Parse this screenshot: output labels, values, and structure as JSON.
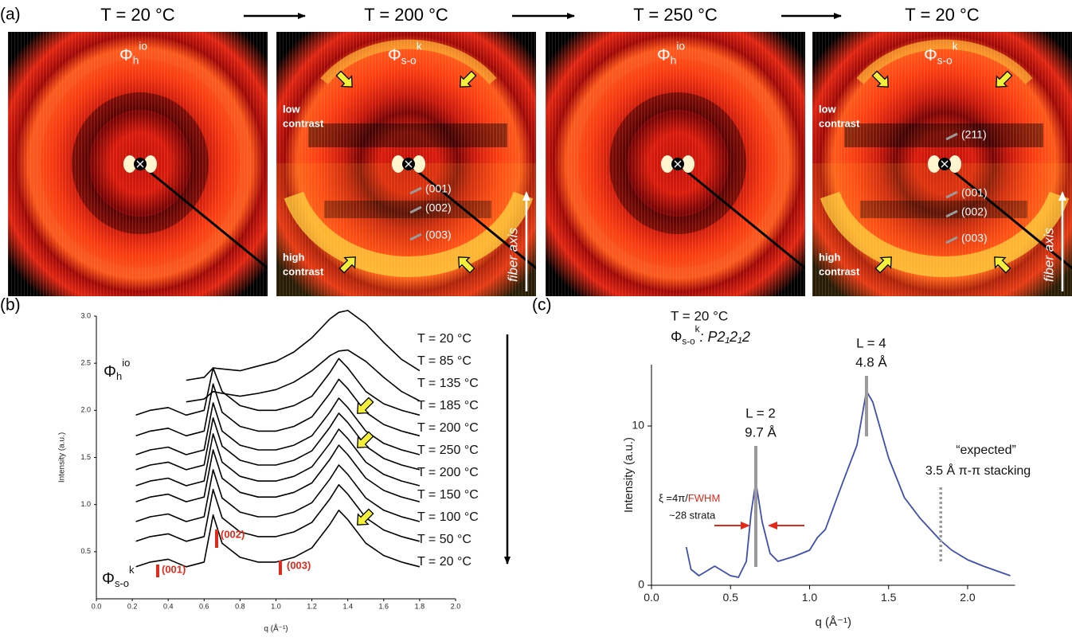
{
  "panel_a": {
    "label": "(a)",
    "frames": [
      {
        "temperature": "T = 20 °C",
        "phase": {
          "symbol": "Φ",
          "sub": "h",
          "sup": "io"
        }
      },
      {
        "temperature": "T = 200 °C",
        "phase": {
          "symbol": "Φ",
          "sub": "s-o",
          "sup": "k"
        },
        "low_contrast": [
          "low",
          "contrast"
        ],
        "high_contrast": [
          "high",
          "contrast"
        ],
        "reflections": [
          "(001)",
          "(002)",
          "(003)"
        ],
        "fiber_axis": "fiber axis"
      },
      {
        "temperature": "T = 250 °C",
        "phase": {
          "symbol": "Φ",
          "sub": "h",
          "sup": "io"
        }
      },
      {
        "temperature": "T = 20 °C",
        "phase": {
          "symbol": "Φ",
          "sub": "s-o",
          "sup": "k"
        },
        "low_contrast": [
          "low",
          "contrast"
        ],
        "high_contrast": [
          "high",
          "contrast"
        ],
        "reflections": [
          "(211)",
          "(001)",
          "(002)",
          "(003)"
        ],
        "fiber_axis": "fiber axis"
      }
    ]
  },
  "chart_data": [
    {
      "type": "line",
      "label": "(b)",
      "x_label": "q (Å⁻¹)",
      "y_label": "Intensity (a.u.)",
      "x": [
        0.22,
        0.3,
        0.4,
        0.5,
        0.6,
        0.65,
        0.7,
        0.8,
        0.9,
        1.0,
        1.1,
        1.2,
        1.3,
        1.35,
        1.4,
        1.5,
        1.6,
        1.7,
        1.8
      ],
      "series": [
        {
          "name": "T = 20 °C",
          "color": "#000000",
          "values": [
            null,
            null,
            null,
            2.32,
            2.35,
            2.45,
            2.44,
            2.42,
            2.47,
            2.52,
            2.62,
            2.77,
            2.97,
            3.04,
            3.06,
            2.92,
            2.72,
            2.54,
            2.42
          ]
        },
        {
          "name": "T = 85 °C",
          "color": "#000000",
          "values": [
            null,
            null,
            null,
            2.09,
            2.12,
            2.2,
            2.18,
            2.15,
            2.18,
            2.22,
            2.3,
            2.42,
            2.58,
            2.63,
            2.64,
            2.52,
            2.35,
            2.2,
            2.1
          ]
        },
        {
          "name": "T = 135 °C",
          "color": "#000000",
          "values": [
            1.95,
            2.0,
            2.03,
            1.95,
            2.0,
            2.45,
            2.2,
            2.05,
            2.0,
            2.0,
            2.05,
            2.15,
            2.4,
            2.55,
            2.45,
            2.2,
            2.07,
            2.0,
            1.95
          ]
        },
        {
          "name": "T = 185 °C",
          "color": "#000000",
          "values": [
            1.73,
            1.78,
            1.81,
            1.73,
            1.78,
            2.28,
            1.98,
            1.83,
            1.78,
            1.78,
            1.83,
            1.93,
            2.18,
            2.33,
            2.23,
            1.98,
            1.85,
            1.78,
            1.73
          ]
        },
        {
          "name": "T = 200 °C",
          "color": "#000000",
          "values": [
            1.53,
            1.58,
            1.61,
            1.53,
            1.58,
            2.08,
            1.78,
            1.63,
            1.58,
            1.58,
            1.63,
            1.73,
            1.98,
            2.13,
            2.03,
            1.78,
            1.65,
            1.58,
            1.53
          ]
        },
        {
          "name": "T = 250 °C",
          "color": "#000000",
          "values": [
            1.37,
            1.42,
            1.45,
            1.37,
            1.42,
            1.92,
            1.62,
            1.47,
            1.42,
            1.42,
            1.47,
            1.57,
            1.82,
            1.97,
            1.87,
            1.62,
            1.49,
            1.42,
            1.37
          ]
        },
        {
          "name": "T = 200 °C",
          "color": "#000000",
          "values": [
            1.2,
            1.25,
            1.28,
            1.2,
            1.25,
            1.75,
            1.45,
            1.3,
            1.25,
            1.25,
            1.3,
            1.4,
            1.65,
            1.8,
            1.7,
            1.45,
            1.32,
            1.25,
            1.2
          ]
        },
        {
          "name": "T = 150 °C",
          "color": "#000000",
          "values": [
            1.03,
            1.08,
            1.11,
            1.03,
            1.08,
            1.58,
            1.28,
            1.13,
            1.08,
            1.08,
            1.13,
            1.23,
            1.48,
            1.63,
            1.53,
            1.28,
            1.15,
            1.08,
            1.03
          ]
        },
        {
          "name": "T = 100 °C",
          "color": "#000000",
          "values": [
            0.82,
            0.87,
            0.9,
            0.82,
            0.87,
            1.37,
            1.07,
            0.92,
            0.87,
            0.87,
            0.92,
            1.02,
            1.27,
            1.42,
            1.32,
            1.07,
            0.94,
            0.87,
            0.82
          ]
        },
        {
          "name": "T = 50 °C",
          "color": "#000000",
          "values": [
            0.61,
            0.66,
            0.69,
            0.61,
            0.66,
            1.16,
            0.86,
            0.71,
            0.66,
            0.66,
            0.71,
            0.81,
            1.06,
            1.21,
            1.11,
            0.86,
            0.73,
            0.66,
            0.61
          ]
        },
        {
          "name": "T = 20 °C",
          "color": "#000000",
          "values": [
            0.34,
            0.39,
            0.42,
            0.34,
            0.39,
            0.89,
            0.59,
            0.44,
            0.39,
            0.39,
            0.44,
            0.54,
            0.79,
            0.94,
            0.84,
            0.59,
            0.46,
            0.39,
            0.34
          ]
        }
      ],
      "xlim": [
        0,
        2
      ],
      "ylim": [
        0,
        3
      ],
      "xticks": [
        {
          "value": 0,
          "label": "0.0"
        },
        0.2,
        0.4,
        0.6,
        0.8,
        {
          "value": 1,
          "label": "1.0"
        },
        1.2,
        1.4,
        1.6,
        1.8,
        {
          "value": 2,
          "label": "2.0"
        }
      ],
      "yticks": [
        0.5,
        {
          "value": 1,
          "label": "1.0"
        },
        1.5,
        {
          "value": 2,
          "label": "2.0"
        },
        2.5,
        {
          "value": 3,
          "label": "3.0"
        }
      ],
      "phase_top": {
        "symbol": "Φ",
        "sub": "h",
        "sup": "io"
      },
      "phase_bottom": {
        "symbol": "Φ",
        "sub": "s-o",
        "sup": "k"
      },
      "annotations": [
        "(001)",
        "(002)",
        "(003)"
      ]
    },
    {
      "type": "line",
      "label": "(c)",
      "title": "T = 20 °C",
      "subtitle": {
        "symbol": "Φ",
        "sub": "s-o",
        "sup": "k",
        "text": ": P2₁2₁2"
      },
      "x_label": "q (Å⁻¹)",
      "y_label": "Intensity (a.u.)",
      "x": [
        0.22,
        0.25,
        0.3,
        0.35,
        0.4,
        0.45,
        0.5,
        0.55,
        0.6,
        0.63,
        0.66,
        0.7,
        0.75,
        0.8,
        0.9,
        1.0,
        1.05,
        1.1,
        1.2,
        1.3,
        1.36,
        1.4,
        1.5,
        1.6,
        1.7,
        1.83,
        1.9,
        2.0,
        2.1,
        2.27
      ],
      "series": [
        {
          "color": "#3f4fae",
          "values": [
            2.4,
            1.0,
            0.6,
            0.9,
            1.2,
            0.9,
            0.6,
            0.5,
            1.5,
            4.5,
            6.5,
            4.0,
            2.0,
            1.5,
            1.8,
            2.2,
            3.0,
            3.5,
            6.2,
            8.8,
            12.2,
            11.5,
            8.0,
            5.5,
            4.2,
            2.8,
            2.2,
            1.6,
            1.2,
            0.6
          ]
        }
      ],
      "xlim": [
        0,
        2.3
      ],
      "ylim": [
        0,
        13.85
      ],
      "xticks": [
        {
          "value": 0,
          "label": "0.0"
        },
        0.5,
        {
          "value": 1,
          "label": "1.0"
        },
        1.5,
        {
          "value": 2,
          "label": "2.0"
        }
      ],
      "yticks": [
        0,
        10
      ],
      "peaks": [
        {
          "lines": [
            "L = 2",
            "9.7 Å"
          ]
        },
        {
          "lines": [
            "L = 4",
            "4.8 Å"
          ]
        }
      ],
      "expected": [
        "“expected”",
        "3.5 Å π-π stacking"
      ],
      "coherence": {
        "prefix": "ξ =4π/",
        "highlight": "FWHM",
        "note": "~28 strata"
      }
    }
  ]
}
